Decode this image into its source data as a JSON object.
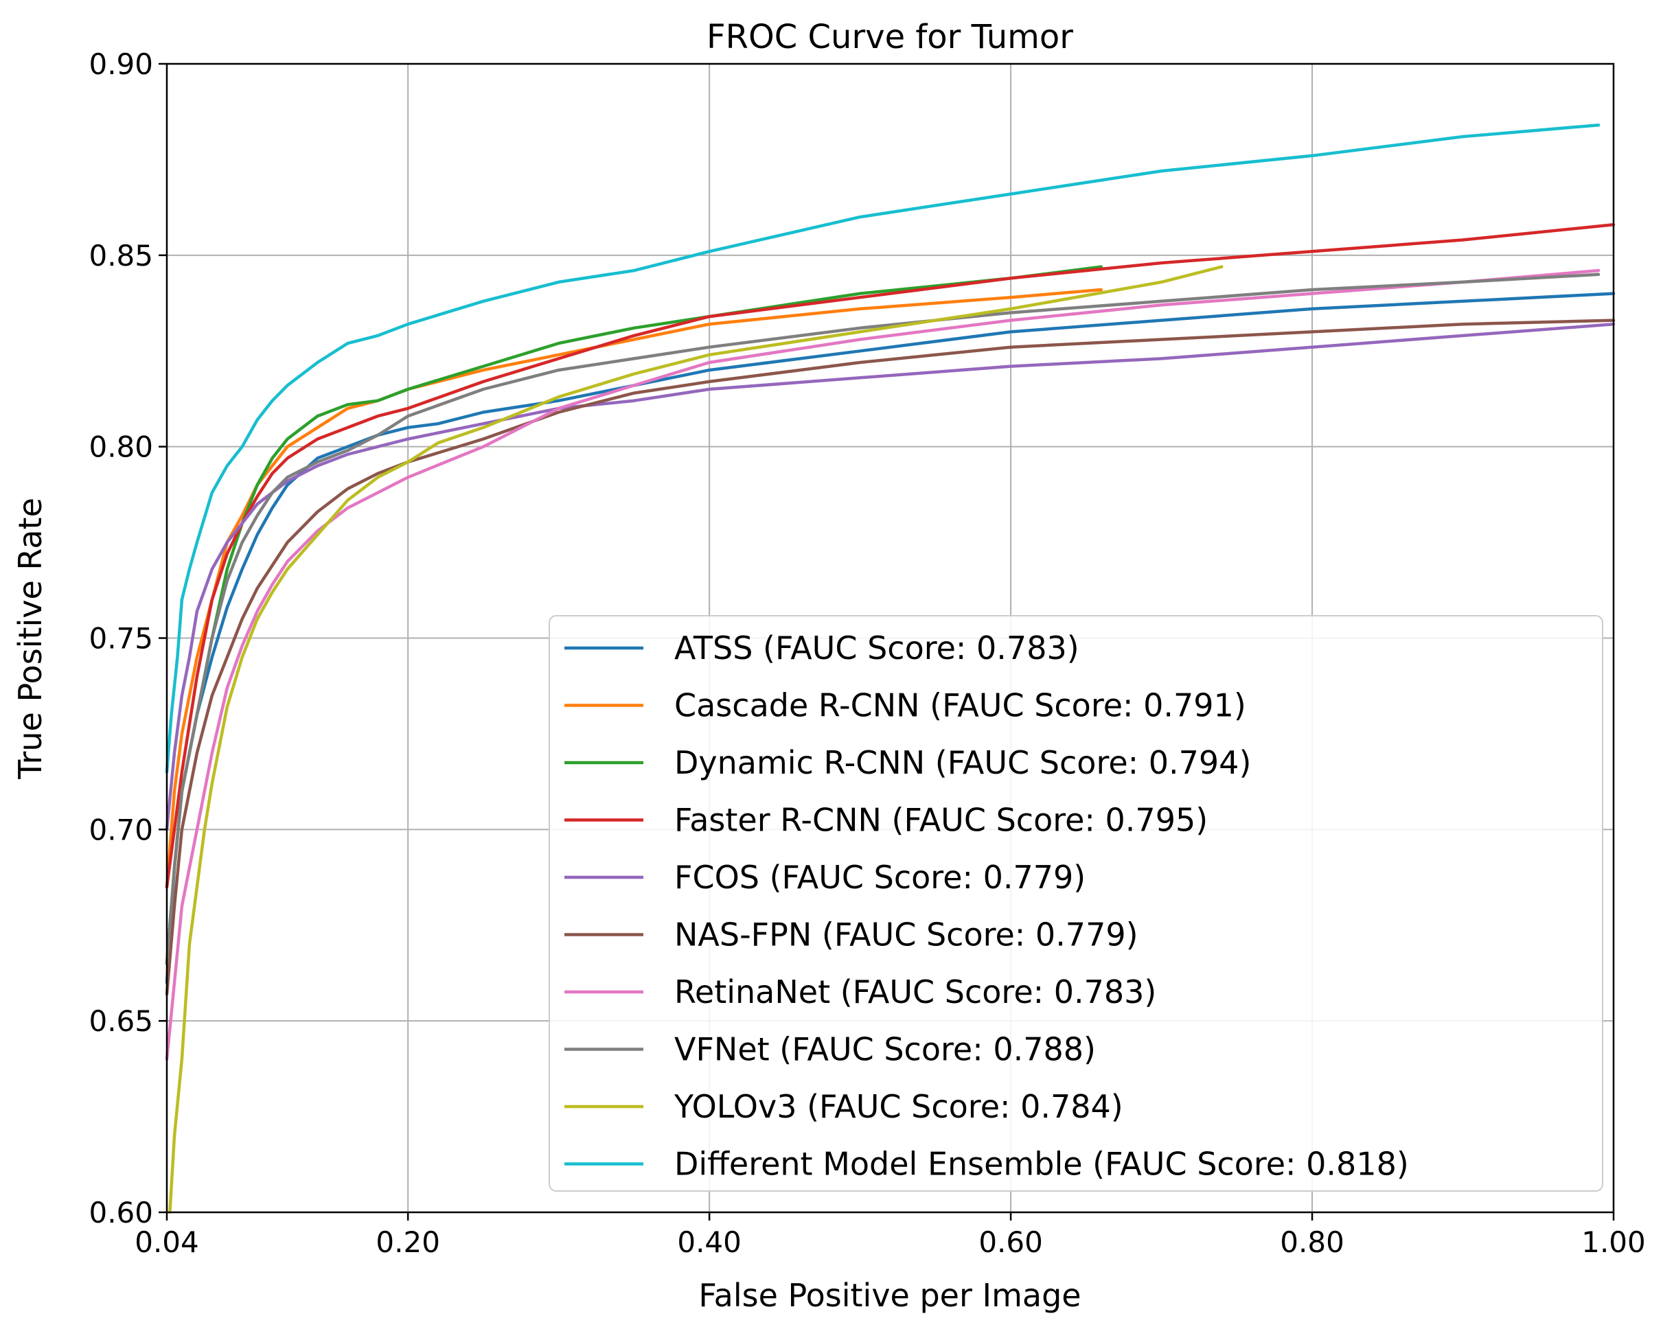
{
  "chart_data": {
    "type": "line",
    "title": "FROC Curve for Tumor",
    "xlabel": "False Positive per Image",
    "ylabel": "True Positive Rate",
    "xlim": [
      0.04,
      1.0
    ],
    "ylim": [
      0.6,
      0.9
    ],
    "xticks": [
      0.04,
      0.2,
      0.4,
      0.6,
      0.8,
      1.0
    ],
    "xtick_labels": [
      "0.04",
      "0.20",
      "0.40",
      "0.60",
      "0.80",
      "1.00"
    ],
    "yticks": [
      0.6,
      0.65,
      0.7,
      0.75,
      0.8,
      0.85,
      0.9
    ],
    "ytick_labels": [
      "0.60",
      "0.65",
      "0.70",
      "0.75",
      "0.80",
      "0.85",
      "0.90"
    ],
    "grid": true,
    "legend_position": "lower-right",
    "series": [
      {
        "name": "ATSS (FAUC Score: 0.783)",
        "color": "#1f77b4",
        "x": [
          0.04,
          0.045,
          0.05,
          0.06,
          0.07,
          0.08,
          0.09,
          0.1,
          0.11,
          0.12,
          0.14,
          0.16,
          0.18,
          0.2,
          0.22,
          0.25,
          0.3,
          0.35,
          0.4,
          0.5,
          0.6,
          0.7,
          0.8,
          0.9,
          1.0
        ],
        "y": [
          0.66,
          0.69,
          0.71,
          0.73,
          0.745,
          0.758,
          0.768,
          0.777,
          0.784,
          0.79,
          0.797,
          0.8,
          0.803,
          0.805,
          0.806,
          0.809,
          0.812,
          0.816,
          0.82,
          0.825,
          0.83,
          0.833,
          0.836,
          0.838,
          0.84
        ]
      },
      {
        "name": "Cascade R-CNN (FAUC Score: 0.791)",
        "color": "#ff7f0e",
        "x": [
          0.04,
          0.045,
          0.05,
          0.06,
          0.07,
          0.08,
          0.09,
          0.1,
          0.11,
          0.12,
          0.14,
          0.16,
          0.18,
          0.2,
          0.25,
          0.3,
          0.35,
          0.4,
          0.5,
          0.6,
          0.66
        ],
        "y": [
          0.685,
          0.71,
          0.725,
          0.745,
          0.76,
          0.775,
          0.782,
          0.79,
          0.795,
          0.8,
          0.805,
          0.81,
          0.812,
          0.815,
          0.82,
          0.824,
          0.828,
          0.832,
          0.836,
          0.839,
          0.841
        ]
      },
      {
        "name": "Dynamic R-CNN (FAUC Score: 0.794)",
        "color": "#2ca02c",
        "x": [
          0.04,
          0.045,
          0.05,
          0.06,
          0.07,
          0.08,
          0.09,
          0.1,
          0.11,
          0.12,
          0.14,
          0.16,
          0.18,
          0.2,
          0.25,
          0.3,
          0.35,
          0.4,
          0.5,
          0.6,
          0.66
        ],
        "y": [
          0.665,
          0.69,
          0.71,
          0.73,
          0.75,
          0.768,
          0.78,
          0.79,
          0.797,
          0.802,
          0.808,
          0.811,
          0.812,
          0.815,
          0.821,
          0.827,
          0.831,
          0.834,
          0.84,
          0.844,
          0.847
        ]
      },
      {
        "name": "Faster R-CNN (FAUC Score: 0.795)",
        "color": "#d62728",
        "x": [
          0.04,
          0.045,
          0.05,
          0.06,
          0.07,
          0.08,
          0.09,
          0.1,
          0.11,
          0.12,
          0.14,
          0.16,
          0.18,
          0.2,
          0.25,
          0.3,
          0.35,
          0.4,
          0.5,
          0.6,
          0.7,
          0.8,
          0.9,
          1.0
        ],
        "y": [
          0.685,
          0.7,
          0.715,
          0.74,
          0.76,
          0.772,
          0.78,
          0.787,
          0.793,
          0.797,
          0.802,
          0.805,
          0.808,
          0.81,
          0.817,
          0.823,
          0.829,
          0.834,
          0.839,
          0.844,
          0.848,
          0.851,
          0.854,
          0.858
        ]
      },
      {
        "name": "FCOS (FAUC Score: 0.779)",
        "color": "#9467bd",
        "x": [
          0.04,
          0.045,
          0.05,
          0.055,
          0.06,
          0.07,
          0.08,
          0.09,
          0.1,
          0.11,
          0.12,
          0.14,
          0.16,
          0.18,
          0.2,
          0.25,
          0.3,
          0.35,
          0.4,
          0.5,
          0.6,
          0.7,
          0.8,
          0.9,
          1.0
        ],
        "y": [
          0.7,
          0.72,
          0.735,
          0.745,
          0.757,
          0.768,
          0.775,
          0.78,
          0.785,
          0.788,
          0.791,
          0.795,
          0.798,
          0.8,
          0.802,
          0.806,
          0.81,
          0.812,
          0.815,
          0.818,
          0.821,
          0.823,
          0.826,
          0.829,
          0.832
        ]
      },
      {
        "name": "NAS-FPN (FAUC Score: 0.779)",
        "color": "#8c564b",
        "x": [
          0.04,
          0.045,
          0.05,
          0.06,
          0.07,
          0.08,
          0.09,
          0.1,
          0.12,
          0.14,
          0.16,
          0.18,
          0.2,
          0.25,
          0.3,
          0.35,
          0.4,
          0.5,
          0.6,
          0.7,
          0.8,
          0.9,
          1.0
        ],
        "y": [
          0.657,
          0.68,
          0.7,
          0.72,
          0.735,
          0.745,
          0.755,
          0.763,
          0.775,
          0.783,
          0.789,
          0.793,
          0.796,
          0.802,
          0.809,
          0.814,
          0.817,
          0.822,
          0.826,
          0.828,
          0.83,
          0.832,
          0.833
        ]
      },
      {
        "name": "RetinaNet (FAUC Score: 0.783)",
        "color": "#e377c2",
        "x": [
          0.04,
          0.045,
          0.05,
          0.06,
          0.07,
          0.08,
          0.09,
          0.1,
          0.11,
          0.12,
          0.14,
          0.16,
          0.18,
          0.2,
          0.25,
          0.3,
          0.35,
          0.4,
          0.5,
          0.6,
          0.7,
          0.8,
          0.9,
          0.99
        ],
        "y": [
          0.64,
          0.66,
          0.68,
          0.7,
          0.72,
          0.737,
          0.748,
          0.757,
          0.764,
          0.77,
          0.778,
          0.784,
          0.788,
          0.792,
          0.8,
          0.81,
          0.816,
          0.822,
          0.828,
          0.833,
          0.837,
          0.84,
          0.843,
          0.846
        ]
      },
      {
        "name": "VFNet (FAUC Score: 0.788)",
        "color": "#7f7f7f",
        "x": [
          0.04,
          0.045,
          0.05,
          0.06,
          0.07,
          0.08,
          0.09,
          0.1,
          0.11,
          0.12,
          0.14,
          0.16,
          0.18,
          0.2,
          0.25,
          0.3,
          0.35,
          0.4,
          0.5,
          0.6,
          0.7,
          0.8,
          0.9,
          0.99
        ],
        "y": [
          0.665,
          0.69,
          0.71,
          0.73,
          0.75,
          0.765,
          0.775,
          0.782,
          0.788,
          0.792,
          0.796,
          0.799,
          0.803,
          0.808,
          0.815,
          0.82,
          0.823,
          0.826,
          0.831,
          0.835,
          0.838,
          0.841,
          0.843,
          0.845
        ]
      },
      {
        "name": "YOLOv3 (FAUC Score: 0.784)",
        "color": "#bcbd22",
        "x": [
          0.042,
          0.045,
          0.05,
          0.055,
          0.06,
          0.065,
          0.07,
          0.08,
          0.09,
          0.1,
          0.11,
          0.12,
          0.14,
          0.16,
          0.18,
          0.2,
          0.22,
          0.25,
          0.3,
          0.35,
          0.4,
          0.5,
          0.6,
          0.7,
          0.74
        ],
        "y": [
          0.6,
          0.62,
          0.64,
          0.67,
          0.685,
          0.7,
          0.712,
          0.732,
          0.745,
          0.755,
          0.762,
          0.768,
          0.777,
          0.786,
          0.792,
          0.796,
          0.801,
          0.805,
          0.813,
          0.819,
          0.824,
          0.83,
          0.836,
          0.843,
          0.847
        ]
      },
      {
        "name": "Different Model Ensemble (FAUC Score: 0.818)",
        "color": "#17becf",
        "x": [
          0.04,
          0.043,
          0.047,
          0.05,
          0.055,
          0.06,
          0.07,
          0.08,
          0.09,
          0.1,
          0.11,
          0.12,
          0.14,
          0.16,
          0.18,
          0.2,
          0.25,
          0.3,
          0.35,
          0.4,
          0.5,
          0.6,
          0.7,
          0.8,
          0.9,
          0.99
        ],
        "y": [
          0.715,
          0.73,
          0.745,
          0.76,
          0.768,
          0.775,
          0.788,
          0.795,
          0.8,
          0.807,
          0.812,
          0.816,
          0.822,
          0.827,
          0.829,
          0.832,
          0.838,
          0.843,
          0.846,
          0.851,
          0.86,
          0.866,
          0.872,
          0.876,
          0.881,
          0.884
        ]
      }
    ]
  }
}
